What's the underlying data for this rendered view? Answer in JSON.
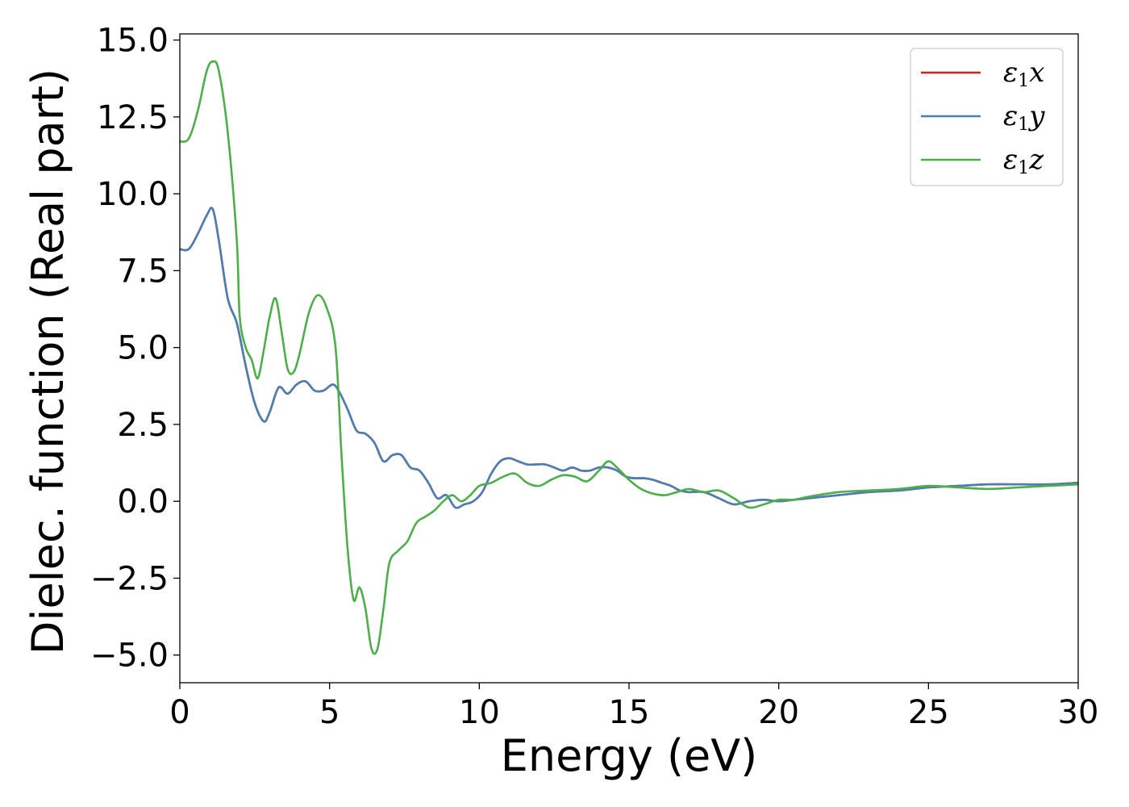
{
  "chart_data": {
    "type": "line",
    "title": "",
    "xlabel": "Energy (eV)",
    "ylabel": "Dielec. function (Real part)",
    "xlim": [
      0,
      30
    ],
    "ylim": [
      -5.9,
      15.2
    ],
    "xticks": [
      0,
      5,
      10,
      15,
      20,
      25,
      30
    ],
    "xtick_labels": [
      "0",
      "5",
      "10",
      "15",
      "20",
      "25",
      "30"
    ],
    "yticks": [
      -5.0,
      -2.5,
      0.0,
      2.5,
      5.0,
      7.5,
      10.0,
      12.5,
      15.0
    ],
    "ytick_labels": [
      "−5.0",
      "−2.5",
      "0.0",
      "2.5",
      "5.0",
      "7.5",
      "10.0",
      "12.5",
      "15.0"
    ],
    "grid": false,
    "legend_position": "top-right",
    "series": [
      {
        "name": "ε1x",
        "legend_main": "ε",
        "legend_sub": "1",
        "legend_tail": "x",
        "color": "#e41a1c",
        "x": [
          0,
          0.3,
          0.6,
          0.9,
          1.1,
          1.3,
          1.6,
          1.9,
          2.2,
          2.5,
          2.8,
          3.0,
          3.3,
          3.6,
          3.9,
          4.2,
          4.5,
          4.8,
          5.1,
          5.3,
          5.6,
          5.9,
          6.2,
          6.5,
          6.8,
          7.1,
          7.4,
          7.7,
          8.0,
          8.3,
          8.6,
          8.9,
          9.2,
          9.5,
          9.8,
          10.1,
          10.4,
          10.7,
          11.0,
          11.3,
          11.6,
          11.9,
          12.2,
          12.5,
          12.8,
          13.1,
          13.4,
          13.7,
          14.0,
          14.3,
          14.6,
          14.9,
          15.2,
          15.5,
          15.8,
          16.1,
          16.4,
          16.7,
          17.0,
          17.5,
          18.0,
          18.5,
          19.0,
          19.5,
          20.0,
          20.5,
          21.0,
          22.0,
          23.0,
          24.0,
          25.0,
          26.0,
          27.0,
          28.0,
          29.0,
          30.0
        ],
        "y": [
          8.2,
          8.2,
          8.7,
          9.3,
          9.5,
          8.5,
          6.6,
          5.8,
          4.4,
          3.2,
          2.6,
          2.9,
          3.7,
          3.5,
          3.8,
          3.9,
          3.6,
          3.6,
          3.8,
          3.6,
          3.0,
          2.3,
          2.2,
          1.9,
          1.3,
          1.5,
          1.5,
          1.1,
          1.0,
          0.6,
          0.1,
          0.2,
          -0.2,
          -0.1,
          0.0,
          0.3,
          0.9,
          1.3,
          1.4,
          1.3,
          1.2,
          1.2,
          1.2,
          1.1,
          1.0,
          1.1,
          1.0,
          1.0,
          1.1,
          1.1,
          1.0,
          0.8,
          0.75,
          0.75,
          0.7,
          0.6,
          0.5,
          0.35,
          0.3,
          0.3,
          0.1,
          -0.1,
          0.0,
          0.05,
          0.0,
          0.05,
          0.1,
          0.2,
          0.3,
          0.35,
          0.45,
          0.5,
          0.55,
          0.55,
          0.55,
          0.6
        ]
      },
      {
        "name": "ε1y",
        "legend_main": "ε",
        "legend_sub": "1",
        "legend_tail": "y",
        "color": "#4a7fb5",
        "x": [
          0,
          0.3,
          0.6,
          0.9,
          1.1,
          1.3,
          1.6,
          1.9,
          2.2,
          2.5,
          2.8,
          3.0,
          3.3,
          3.6,
          3.9,
          4.2,
          4.5,
          4.8,
          5.1,
          5.3,
          5.6,
          5.9,
          6.2,
          6.5,
          6.8,
          7.1,
          7.4,
          7.7,
          8.0,
          8.3,
          8.6,
          8.9,
          9.2,
          9.5,
          9.8,
          10.1,
          10.4,
          10.7,
          11.0,
          11.3,
          11.6,
          11.9,
          12.2,
          12.5,
          12.8,
          13.1,
          13.4,
          13.7,
          14.0,
          14.3,
          14.6,
          14.9,
          15.2,
          15.5,
          15.8,
          16.1,
          16.4,
          16.7,
          17.0,
          17.5,
          18.0,
          18.5,
          19.0,
          19.5,
          20.0,
          20.5,
          21.0,
          22.0,
          23.0,
          24.0,
          25.0,
          26.0,
          27.0,
          28.0,
          29.0,
          30.0
        ],
        "y": [
          8.2,
          8.2,
          8.7,
          9.3,
          9.5,
          8.5,
          6.6,
          5.8,
          4.4,
          3.2,
          2.6,
          2.9,
          3.7,
          3.5,
          3.8,
          3.9,
          3.6,
          3.6,
          3.8,
          3.6,
          3.0,
          2.3,
          2.2,
          1.9,
          1.3,
          1.5,
          1.5,
          1.1,
          1.0,
          0.6,
          0.1,
          0.2,
          -0.2,
          -0.1,
          0.0,
          0.3,
          0.9,
          1.3,
          1.4,
          1.3,
          1.2,
          1.2,
          1.2,
          1.1,
          1.0,
          1.1,
          1.0,
          1.0,
          1.1,
          1.1,
          1.0,
          0.8,
          0.75,
          0.75,
          0.7,
          0.6,
          0.5,
          0.35,
          0.3,
          0.3,
          0.1,
          -0.1,
          0.0,
          0.05,
          0.0,
          0.05,
          0.1,
          0.2,
          0.3,
          0.35,
          0.45,
          0.5,
          0.55,
          0.55,
          0.55,
          0.6
        ]
      },
      {
        "name": "ε1z",
        "legend_main": "ε",
        "legend_sub": "1",
        "legend_tail": "z",
        "color": "#4daf4a",
        "x": [
          0,
          0.3,
          0.6,
          0.9,
          1.1,
          1.3,
          1.6,
          1.9,
          2.0,
          2.2,
          2.4,
          2.6,
          2.8,
          3.0,
          3.2,
          3.4,
          3.6,
          3.8,
          4.0,
          4.3,
          4.6,
          4.9,
          5.2,
          5.4,
          5.6,
          5.8,
          6.0,
          6.2,
          6.4,
          6.6,
          6.8,
          7.0,
          7.3,
          7.6,
          7.9,
          8.2,
          8.5,
          8.8,
          9.1,
          9.4,
          9.7,
          10.0,
          10.4,
          10.8,
          11.2,
          11.6,
          12.0,
          12.4,
          12.8,
          13.2,
          13.6,
          14.0,
          14.3,
          14.6,
          15.0,
          15.4,
          15.8,
          16.2,
          16.6,
          17.0,
          17.5,
          18.0,
          18.5,
          19.0,
          19.5,
          20.0,
          20.5,
          21.0,
          22.0,
          23.0,
          24.0,
          25.0,
          26.0,
          27.0,
          28.0,
          29.0,
          30.0
        ],
        "y": [
          11.7,
          11.8,
          12.7,
          14.0,
          14.3,
          14.0,
          12.0,
          8.5,
          6.0,
          5.0,
          4.6,
          4.0,
          4.9,
          6.0,
          6.6,
          5.5,
          4.3,
          4.2,
          4.8,
          6.1,
          6.7,
          6.3,
          5.0,
          1.5,
          -1.5,
          -3.2,
          -2.8,
          -3.5,
          -4.8,
          -4.8,
          -3.5,
          -2.0,
          -1.6,
          -1.3,
          -0.7,
          -0.5,
          -0.3,
          0.0,
          0.2,
          0.0,
          0.2,
          0.5,
          0.6,
          0.8,
          0.9,
          0.6,
          0.5,
          0.7,
          0.85,
          0.8,
          0.65,
          1.0,
          1.3,
          1.1,
          0.7,
          0.4,
          0.25,
          0.2,
          0.3,
          0.4,
          0.3,
          0.35,
          0.1,
          -0.2,
          -0.1,
          0.05,
          0.05,
          0.15,
          0.3,
          0.35,
          0.4,
          0.5,
          0.45,
          0.4,
          0.45,
          0.5,
          0.55
        ]
      }
    ]
  }
}
